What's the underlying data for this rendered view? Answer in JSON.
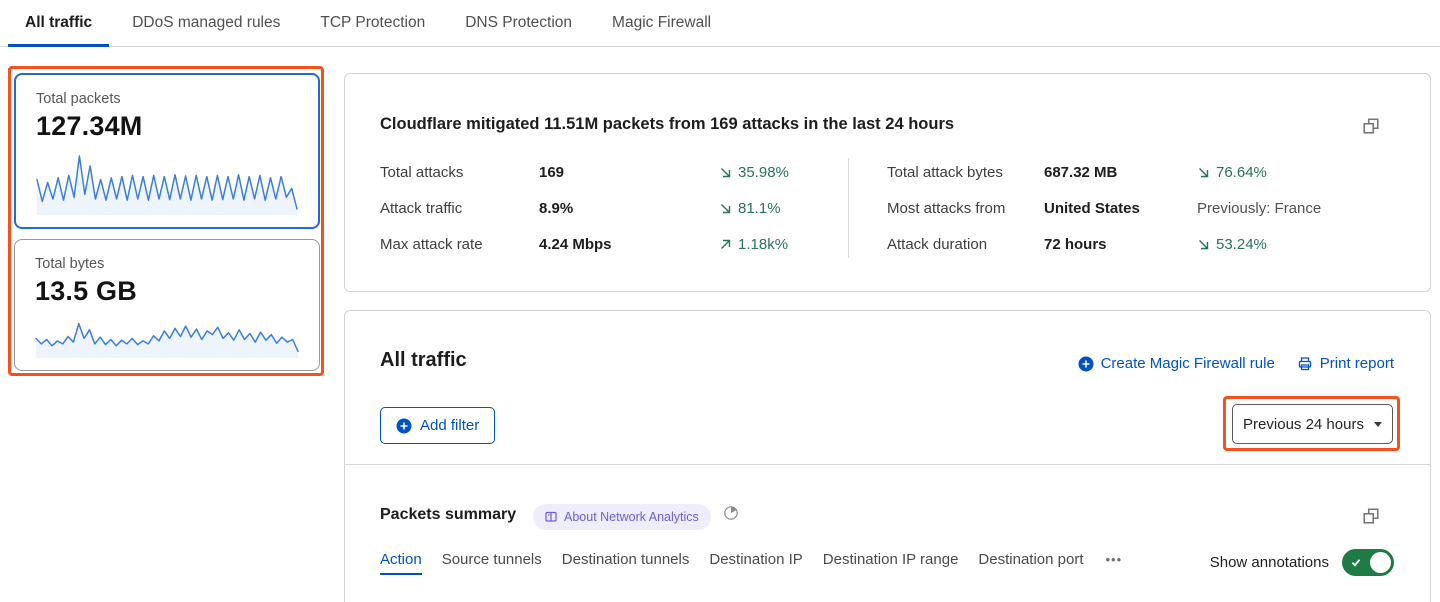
{
  "colors": {
    "accent_blue": "#0051c3",
    "annotation_orange": "#f4511e",
    "delta_green": "#267357",
    "toggle_green": "#1f7b46",
    "badge_purple": "#6b5fd6",
    "badge_bg": "#efedfc",
    "sparkline_blue": "#3b7ddd"
  },
  "top_tabs": {
    "items": [
      {
        "label": "All traffic",
        "active": true
      },
      {
        "label": "DDoS managed rules",
        "active": false
      },
      {
        "label": "TCP Protection",
        "active": false
      },
      {
        "label": "DNS Protection",
        "active": false
      },
      {
        "label": "Magic Firewall",
        "active": false
      }
    ]
  },
  "sidebar": {
    "cards": [
      {
        "title": "Total packets",
        "value": "127.34M"
      },
      {
        "title": "Total bytes",
        "value": "13.5 GB"
      }
    ]
  },
  "summary": {
    "title": "Cloudflare mitigated 11.51M packets from 169 attacks in the last 24 hours",
    "stats_left": [
      {
        "label": "Total attacks",
        "value": "169",
        "delta": "35.98%",
        "direction": "down"
      },
      {
        "label": "Attack traffic",
        "value": "8.9%",
        "delta": "81.1%",
        "direction": "down"
      },
      {
        "label": "Max attack rate",
        "value": "4.24 Mbps",
        "delta": "1.18k%",
        "direction": "up"
      }
    ],
    "stats_right": [
      {
        "label": "Total attack bytes",
        "value": "687.32 MB",
        "delta": "76.64%",
        "direction": "down"
      },
      {
        "label": "Most attacks from",
        "value": "United States",
        "delta": "Previously: France",
        "direction": "none"
      },
      {
        "label": "Attack duration",
        "value": "72 hours",
        "delta": "53.24%",
        "direction": "down"
      }
    ]
  },
  "traffic": {
    "title": "All traffic",
    "create_rule_label": "Create Magic Firewall rule",
    "print_report_label": "Print report",
    "add_filter_label": "Add filter",
    "time_range_label": "Previous 24 hours"
  },
  "packets_summary": {
    "title": "Packets summary",
    "badge_label": "About Network Analytics",
    "tabs": [
      {
        "label": "Action",
        "active": true
      },
      {
        "label": "Source tunnels",
        "active": false
      },
      {
        "label": "Destination tunnels",
        "active": false
      },
      {
        "label": "Destination IP",
        "active": false
      },
      {
        "label": "Destination IP range",
        "active": false
      },
      {
        "label": "Destination port",
        "active": false
      }
    ],
    "more_tabs_label": "•••",
    "show_annotations_label": "Show annotations",
    "annotations_on": true
  },
  "chart_data": [
    {
      "type": "line",
      "name": "Total packets sparkline",
      "metric": "Total packets",
      "total": "127.34M",
      "period": "last 24 hours",
      "values": [
        0.55,
        0.18,
        0.5,
        0.22,
        0.58,
        0.2,
        0.62,
        0.25,
        0.95,
        0.3,
        0.78,
        0.22,
        0.55,
        0.2,
        0.58,
        0.22,
        0.6,
        0.2,
        0.62,
        0.22,
        0.6,
        0.2,
        0.62,
        0.22,
        0.6,
        0.21,
        0.63,
        0.22,
        0.61,
        0.2,
        0.62,
        0.22,
        0.6,
        0.2,
        0.62,
        0.21,
        0.6,
        0.22,
        0.63,
        0.2,
        0.6,
        0.22,
        0.62,
        0.2,
        0.58,
        0.22,
        0.6,
        0.25,
        0.4,
        0.05
      ]
    },
    {
      "type": "line",
      "name": "Total bytes sparkline",
      "metric": "Total bytes",
      "total": "13.5 GB",
      "period": "last 24 hours",
      "values": [
        0.45,
        0.3,
        0.42,
        0.25,
        0.38,
        0.3,
        0.5,
        0.35,
        0.85,
        0.45,
        0.68,
        0.3,
        0.48,
        0.28,
        0.42,
        0.25,
        0.4,
        0.3,
        0.45,
        0.28,
        0.38,
        0.3,
        0.52,
        0.38,
        0.65,
        0.45,
        0.72,
        0.5,
        0.78,
        0.48,
        0.7,
        0.42,
        0.65,
        0.55,
        0.75,
        0.45,
        0.6,
        0.4,
        0.68,
        0.42,
        0.58,
        0.35,
        0.62,
        0.4,
        0.55,
        0.32,
        0.48,
        0.35,
        0.42,
        0.1
      ]
    }
  ]
}
